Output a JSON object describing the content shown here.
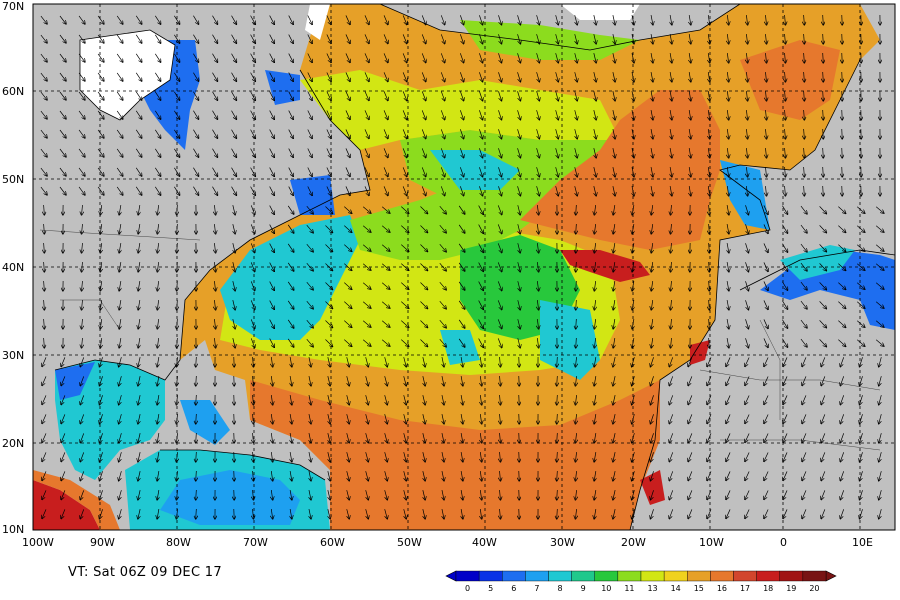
{
  "map": {
    "lat_labels": [
      "70N",
      "60N",
      "50N",
      "40N",
      "30N",
      "20N",
      "10N"
    ],
    "lon_labels": [
      "100W",
      "90W",
      "80W",
      "70W",
      "60W",
      "50W",
      "40W",
      "30W",
      "20W",
      "10W",
      "0",
      "10E"
    ]
  },
  "valid_time": "VT: Sat 06Z 09 DEC 17",
  "legend": {
    "ticks": [
      "0",
      "5",
      "6",
      "7",
      "8",
      "9",
      "10",
      "11",
      "13",
      "14",
      "15",
      "16",
      "17",
      "18",
      "19",
      "20"
    ],
    "colors": [
      "#0000c8",
      "#0a32e6",
      "#1e6ef0",
      "#1ea0f0",
      "#20c8d2",
      "#20c88c",
      "#28c83c",
      "#8cdc1e",
      "#d2e614",
      "#f0d21e",
      "#e6a028",
      "#e6782d",
      "#d2462d",
      "#c81e1e",
      "#a01414",
      "#781414"
    ]
  },
  "colors": {
    "land": "#c0c0c0",
    "ice": "#ffffff",
    "grid": "#000000",
    "coast": "#000000"
  }
}
